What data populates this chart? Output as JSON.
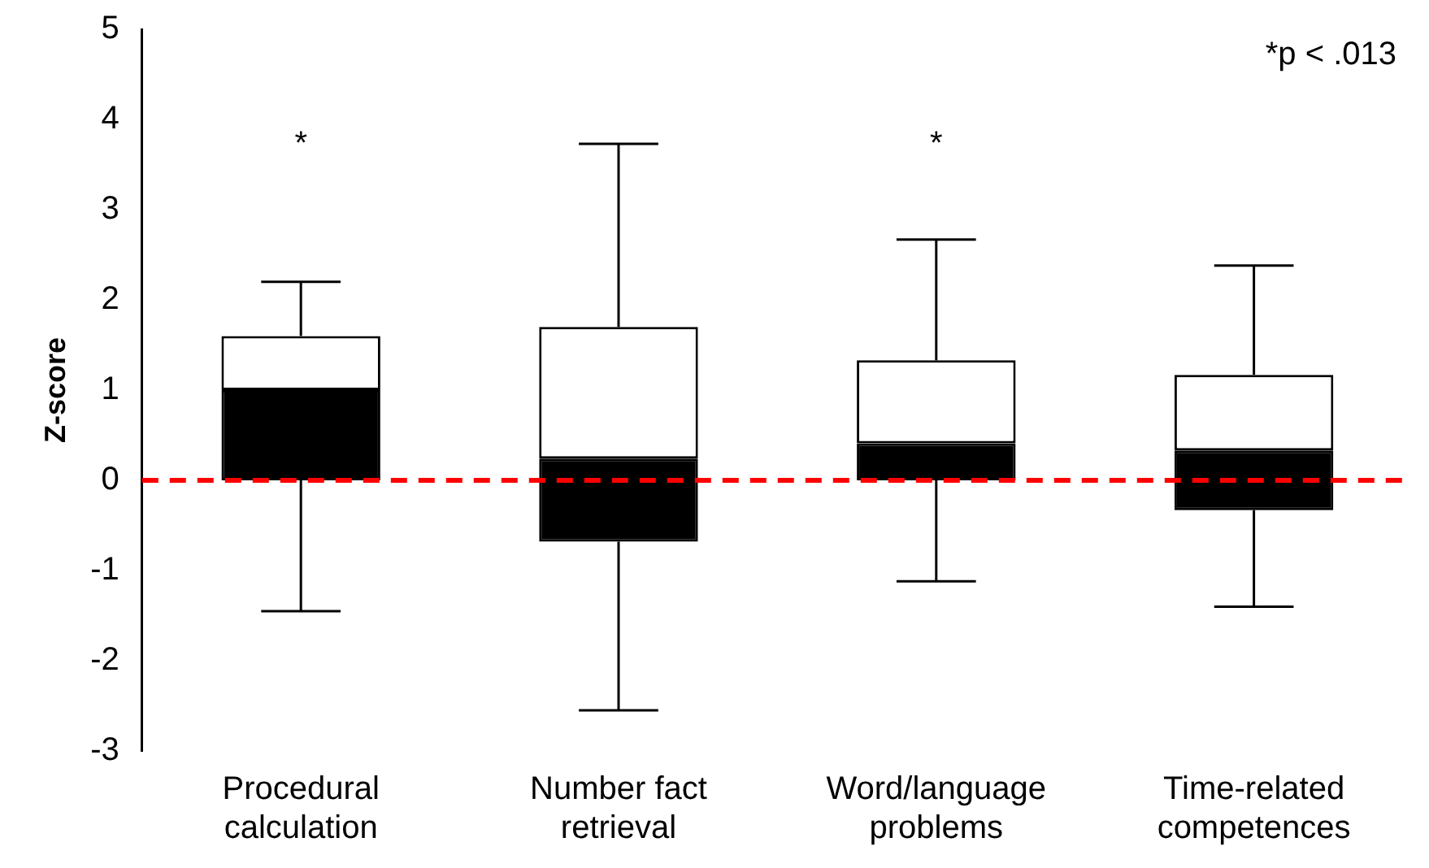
{
  "chart_data": {
    "type": "box",
    "ylabel": "Z-score",
    "categories": [
      "Procedural calculation",
      "Number fact retrieval",
      "Word/language problems",
      "Time-related competences"
    ],
    "color": "#000000",
    "boxes": [
      {
        "low": -1.45,
        "q1": 0,
        "median": 1.0,
        "q3": 1.6,
        "high": 2.2
      },
      {
        "low": -2.55,
        "q1": -0.68,
        "median": 0.24,
        "q3": 1.7,
        "high": 3.73
      },
      {
        "low": -1.12,
        "q1": 0,
        "median": 0.41,
        "q3": 1.33,
        "high": 2.67
      },
      {
        "low": -1.4,
        "q1": -0.33,
        "median": 0.33,
        "q3": 1.17,
        "high": 2.38
      }
    ],
    "ylim": [
      -3,
      5
    ],
    "yticks": [
      -3,
      -2,
      -1,
      0,
      1,
      2,
      3,
      4,
      5
    ],
    "grid": false,
    "ref_lines": [
      {
        "axis": "y",
        "value": 0,
        "color": "#ff0000",
        "line_style": "dashed"
      }
    ],
    "value_labels": [
      "*",
      null,
      "*",
      null
    ],
    "annotations": [
      "*p < .013"
    ]
  }
}
